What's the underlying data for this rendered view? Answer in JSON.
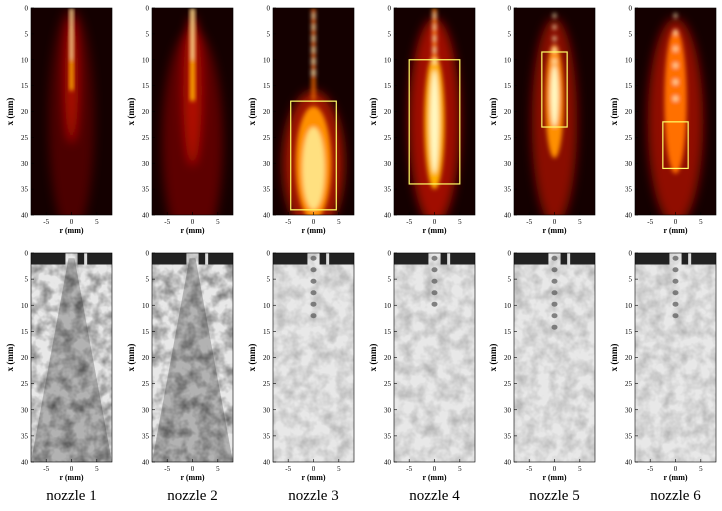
{
  "figure": {
    "axis_label_x": "x (mm)",
    "axis_label_r": "r (mm)",
    "x_ticks": [
      "0",
      "5",
      "10",
      "15",
      "20",
      "25",
      "30",
      "35",
      "40"
    ],
    "r_ticks": [
      "-5",
      "0",
      "5"
    ],
    "panels": [
      {
        "caption": "nozzle 1",
        "flame": "narrow-diffuse",
        "box": null,
        "diamonds": 0
      },
      {
        "caption": "nozzle 2",
        "flame": "wide-diffuse",
        "box": null,
        "diamonds": 0
      },
      {
        "caption": "nozzle 3",
        "flame": "burst",
        "box": {
          "x_from": 18,
          "x_to": 39,
          "r_from": -4.5,
          "r_to": 4.5
        },
        "diamonds": 6
      },
      {
        "caption": "nozzle 4",
        "flame": "long-core",
        "box": {
          "x_from": 10,
          "x_to": 34,
          "r_from": -5,
          "r_to": 5
        },
        "diamonds": 5
      },
      {
        "caption": "nozzle 5",
        "flame": "shock-cells",
        "box": {
          "x_from": 8.5,
          "x_to": 23,
          "r_from": -2.5,
          "r_to": 2.5
        },
        "diamonds": 7
      },
      {
        "caption": "nozzle 6",
        "flame": "shock-cells-wide",
        "box": {
          "x_from": 22,
          "x_to": 31,
          "r_from": -2.5,
          "r_to": 2.5
        },
        "diamonds": 6
      }
    ],
    "colors": {
      "flame_dark": "#140000",
      "flame_mid": "#b01000",
      "flame_hot": "#ffb000",
      "flame_core": "#fff8c0",
      "box": "#ffff66",
      "shadow_bg": "#e8e8e8"
    }
  }
}
